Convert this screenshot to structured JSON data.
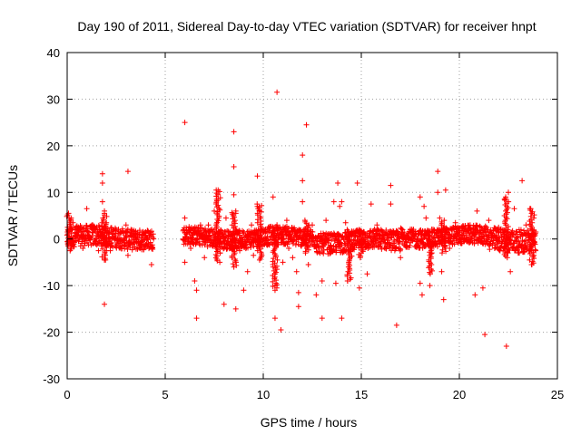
{
  "chart_data": {
    "type": "scatter",
    "title": "Day 190 of 2011, Sidereal Day-to-day VTEC variation (SDTVAR) for receiver hnpt",
    "xlabel": "GPS time / hours",
    "ylabel": "SDTVAR / TECUs",
    "xlim": [
      0,
      25
    ],
    "ylim": [
      -30,
      40
    ],
    "xticks": [
      0,
      5,
      10,
      15,
      20,
      25
    ],
    "yticks": [
      -30,
      -20,
      -10,
      0,
      10,
      20,
      30,
      40
    ],
    "xtick_labels": [
      "0",
      "5",
      "10",
      "15",
      "20",
      "25"
    ],
    "ytick_labels": [
      "-30",
      "-20",
      "-10",
      "0",
      "10",
      "20",
      "30",
      "40"
    ],
    "grid": true,
    "marker": "+",
    "color": "#ff0000",
    "series": [
      {
        "name": "SDTVAR",
        "points": [
          [
            0.1,
            4.5
          ],
          [
            0.2,
            -1.5
          ],
          [
            0.3,
            3.5
          ],
          [
            0.5,
            2.8
          ],
          [
            0.8,
            -2.0
          ],
          [
            1.0,
            6.5
          ],
          [
            1.3,
            3.0
          ],
          [
            1.6,
            -2.5
          ],
          [
            1.8,
            14.0
          ],
          [
            1.8,
            12.0
          ],
          [
            1.8,
            8.0
          ],
          [
            1.9,
            -14.0
          ],
          [
            1.9,
            6.0
          ],
          [
            1.9,
            -4.5
          ],
          [
            2.0,
            3.5
          ],
          [
            2.2,
            -2.5
          ],
          [
            2.5,
            2.0
          ],
          [
            2.7,
            1.5
          ],
          [
            3.0,
            3.0
          ],
          [
            3.1,
            14.5
          ],
          [
            3.1,
            -3.5
          ],
          [
            3.5,
            1.2
          ],
          [
            4.0,
            1.5
          ],
          [
            4.3,
            -5.5
          ],
          [
            6.0,
            25.0
          ],
          [
            6.0,
            4.5
          ],
          [
            6.0,
            -5.0
          ],
          [
            6.3,
            -2.0
          ],
          [
            6.5,
            1.5
          ],
          [
            6.5,
            -9.0
          ],
          [
            6.6,
            -11.0
          ],
          [
            6.6,
            -17.0
          ],
          [
            6.8,
            3.0
          ],
          [
            7.0,
            -4.0
          ],
          [
            7.2,
            3.0
          ],
          [
            7.5,
            6.0
          ],
          [
            7.6,
            10.5
          ],
          [
            7.7,
            8.5
          ],
          [
            7.8,
            -3.0
          ],
          [
            8.0,
            -14.0
          ],
          [
            8.1,
            4.5
          ],
          [
            8.3,
            -2.0
          ],
          [
            8.5,
            9.5
          ],
          [
            8.5,
            15.5
          ],
          [
            8.5,
            23.0
          ],
          [
            8.6,
            -15.0
          ],
          [
            8.6,
            5.5
          ],
          [
            8.8,
            -2.5
          ],
          [
            9.0,
            -11.0
          ],
          [
            9.2,
            -7.0
          ],
          [
            9.4,
            3.0
          ],
          [
            9.5,
            -3.5
          ],
          [
            9.7,
            13.5
          ],
          [
            9.7,
            7.0
          ],
          [
            9.8,
            6.0
          ],
          [
            10.0,
            1.5
          ],
          [
            10.5,
            -6.0
          ],
          [
            10.5,
            9.0
          ],
          [
            10.6,
            -10.0
          ],
          [
            10.6,
            -11.0
          ],
          [
            10.6,
            -17.0
          ],
          [
            10.7,
            31.5
          ],
          [
            10.7,
            3.0
          ],
          [
            10.9,
            -19.5
          ],
          [
            11.0,
            -5.0
          ],
          [
            11.2,
            4.0
          ],
          [
            11.3,
            -2.0
          ],
          [
            11.5,
            -4.0
          ],
          [
            11.7,
            -7.0
          ],
          [
            11.8,
            -14.5
          ],
          [
            11.8,
            -11.5
          ],
          [
            12.0,
            18.0
          ],
          [
            12.0,
            12.5
          ],
          [
            12.0,
            8.0
          ],
          [
            12.2,
            24.5
          ],
          [
            12.3,
            -5.5
          ],
          [
            12.5,
            3.0
          ],
          [
            12.7,
            -12.0
          ],
          [
            13.0,
            -17.0
          ],
          [
            13.0,
            -9.0
          ],
          [
            13.2,
            4.0
          ],
          [
            13.4,
            -3.0
          ],
          [
            13.6,
            8.0
          ],
          [
            13.7,
            -9.5
          ],
          [
            13.8,
            12.0
          ],
          [
            13.9,
            7.0
          ],
          [
            14.0,
            8.0
          ],
          [
            14.0,
            -17.0
          ],
          [
            14.2,
            3.5
          ],
          [
            14.3,
            -9.0
          ],
          [
            14.5,
            -1.0
          ],
          [
            14.8,
            12.0
          ],
          [
            14.9,
            -10.5
          ],
          [
            15.0,
            1.0
          ],
          [
            15.3,
            -7.5
          ],
          [
            15.5,
            7.5
          ],
          [
            15.8,
            3.0
          ],
          [
            16.0,
            -1.5
          ],
          [
            16.5,
            11.5
          ],
          [
            16.5,
            7.5
          ],
          [
            16.8,
            -18.5
          ],
          [
            17.0,
            -4.0
          ],
          [
            17.5,
            2.0
          ],
          [
            18.0,
            9.0
          ],
          [
            18.0,
            -9.5
          ],
          [
            18.1,
            -12.0
          ],
          [
            18.2,
            7.0
          ],
          [
            18.3,
            4.5
          ],
          [
            18.5,
            -10.0
          ],
          [
            18.6,
            -3.0
          ],
          [
            18.9,
            14.5
          ],
          [
            18.9,
            10.0
          ],
          [
            19.0,
            4.5
          ],
          [
            19.1,
            -7.0
          ],
          [
            19.2,
            -13.0
          ],
          [
            19.3,
            10.5
          ],
          [
            19.5,
            -2.0
          ],
          [
            19.8,
            3.5
          ],
          [
            20.0,
            1.0
          ],
          [
            20.5,
            2.5
          ],
          [
            20.8,
            -12.0
          ],
          [
            20.9,
            6.0
          ],
          [
            21.2,
            -10.5
          ],
          [
            21.3,
            -20.5
          ],
          [
            21.5,
            4.0
          ],
          [
            21.8,
            -2.0
          ],
          [
            22.0,
            2.5
          ],
          [
            22.3,
            8.5
          ],
          [
            22.4,
            -23.0
          ],
          [
            22.5,
            10.0
          ],
          [
            22.6,
            -7.0
          ],
          [
            22.8,
            6.5
          ],
          [
            23.0,
            -3.0
          ],
          [
            23.2,
            12.5
          ],
          [
            23.4,
            3.0
          ],
          [
            23.6,
            6.5
          ],
          [
            23.7,
            -5.5
          ],
          [
            23.8,
            -3.5
          ],
          [
            23.9,
            1.5
          ]
        ],
        "bands": [
          {
            "x": [
              0.0,
              4.4
            ],
            "y_center": 0.3,
            "spread": 2.2
          },
          {
            "x": [
              5.9,
              12.7
            ],
            "y_center": 0.3,
            "spread": 2.0
          },
          {
            "x": [
              12.7,
              17.0
            ],
            "y_center": -0.5,
            "spread": 2.2
          },
          {
            "x": [
              17.0,
              21.5
            ],
            "y_center": 0.5,
            "spread": 2.0
          },
          {
            "x": [
              21.5,
              23.9
            ],
            "y_center": 0.0,
            "spread": 2.5
          }
        ],
        "streaks": [
          {
            "x": 0.1,
            "y": [
              -2.5,
              5.5
            ]
          },
          {
            "x": 1.9,
            "y": [
              -4.5,
              5.5
            ]
          },
          {
            "x": 7.7,
            "y": [
              -5.0,
              10.5
            ]
          },
          {
            "x": 8.5,
            "y": [
              -6.0,
              6.0
            ]
          },
          {
            "x": 9.8,
            "y": [
              -4.5,
              7.5
            ]
          },
          {
            "x": 10.6,
            "y": [
              -10.5,
              2.5
            ]
          },
          {
            "x": 12.2,
            "y": [
              -3.0,
              4.0
            ]
          },
          {
            "x": 14.4,
            "y": [
              -9.0,
              2.0
            ]
          },
          {
            "x": 15.0,
            "y": [
              -4.0,
              2.0
            ]
          },
          {
            "x": 18.5,
            "y": [
              -7.5,
              1.5
            ]
          },
          {
            "x": 19.2,
            "y": [
              -3.0,
              4.0
            ]
          },
          {
            "x": 22.4,
            "y": [
              -4.0,
              9.0
            ]
          },
          {
            "x": 23.7,
            "y": [
              -5.5,
              6.5
            ]
          }
        ]
      }
    ]
  }
}
